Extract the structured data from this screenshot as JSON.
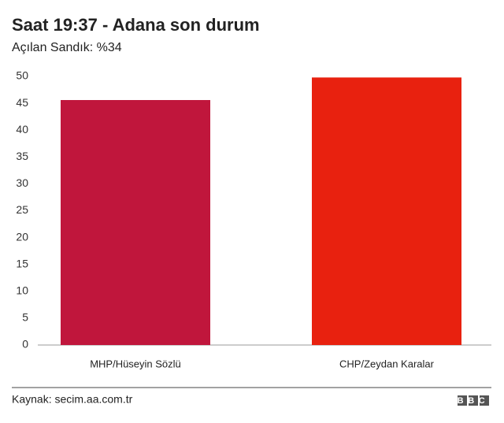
{
  "chart_data": {
    "type": "bar",
    "title": "Saat 19:37 - Adana son durum",
    "subtitle": "Açılan Sandık: %34",
    "categories": [
      "MHP/Hüseyin Sözlü",
      "CHP/Zeydan Karalar"
    ],
    "values": [
      45.6,
      49.8
    ],
    "colors": [
      "#c0163c",
      "#e8210f"
    ],
    "ylim": [
      0,
      50
    ],
    "yticks": [
      0,
      5,
      10,
      15,
      20,
      25,
      30,
      35,
      40,
      45,
      50
    ],
    "grid": false,
    "source": "Kaynak: secim.aa.com.tr",
    "logo": "BBC"
  }
}
